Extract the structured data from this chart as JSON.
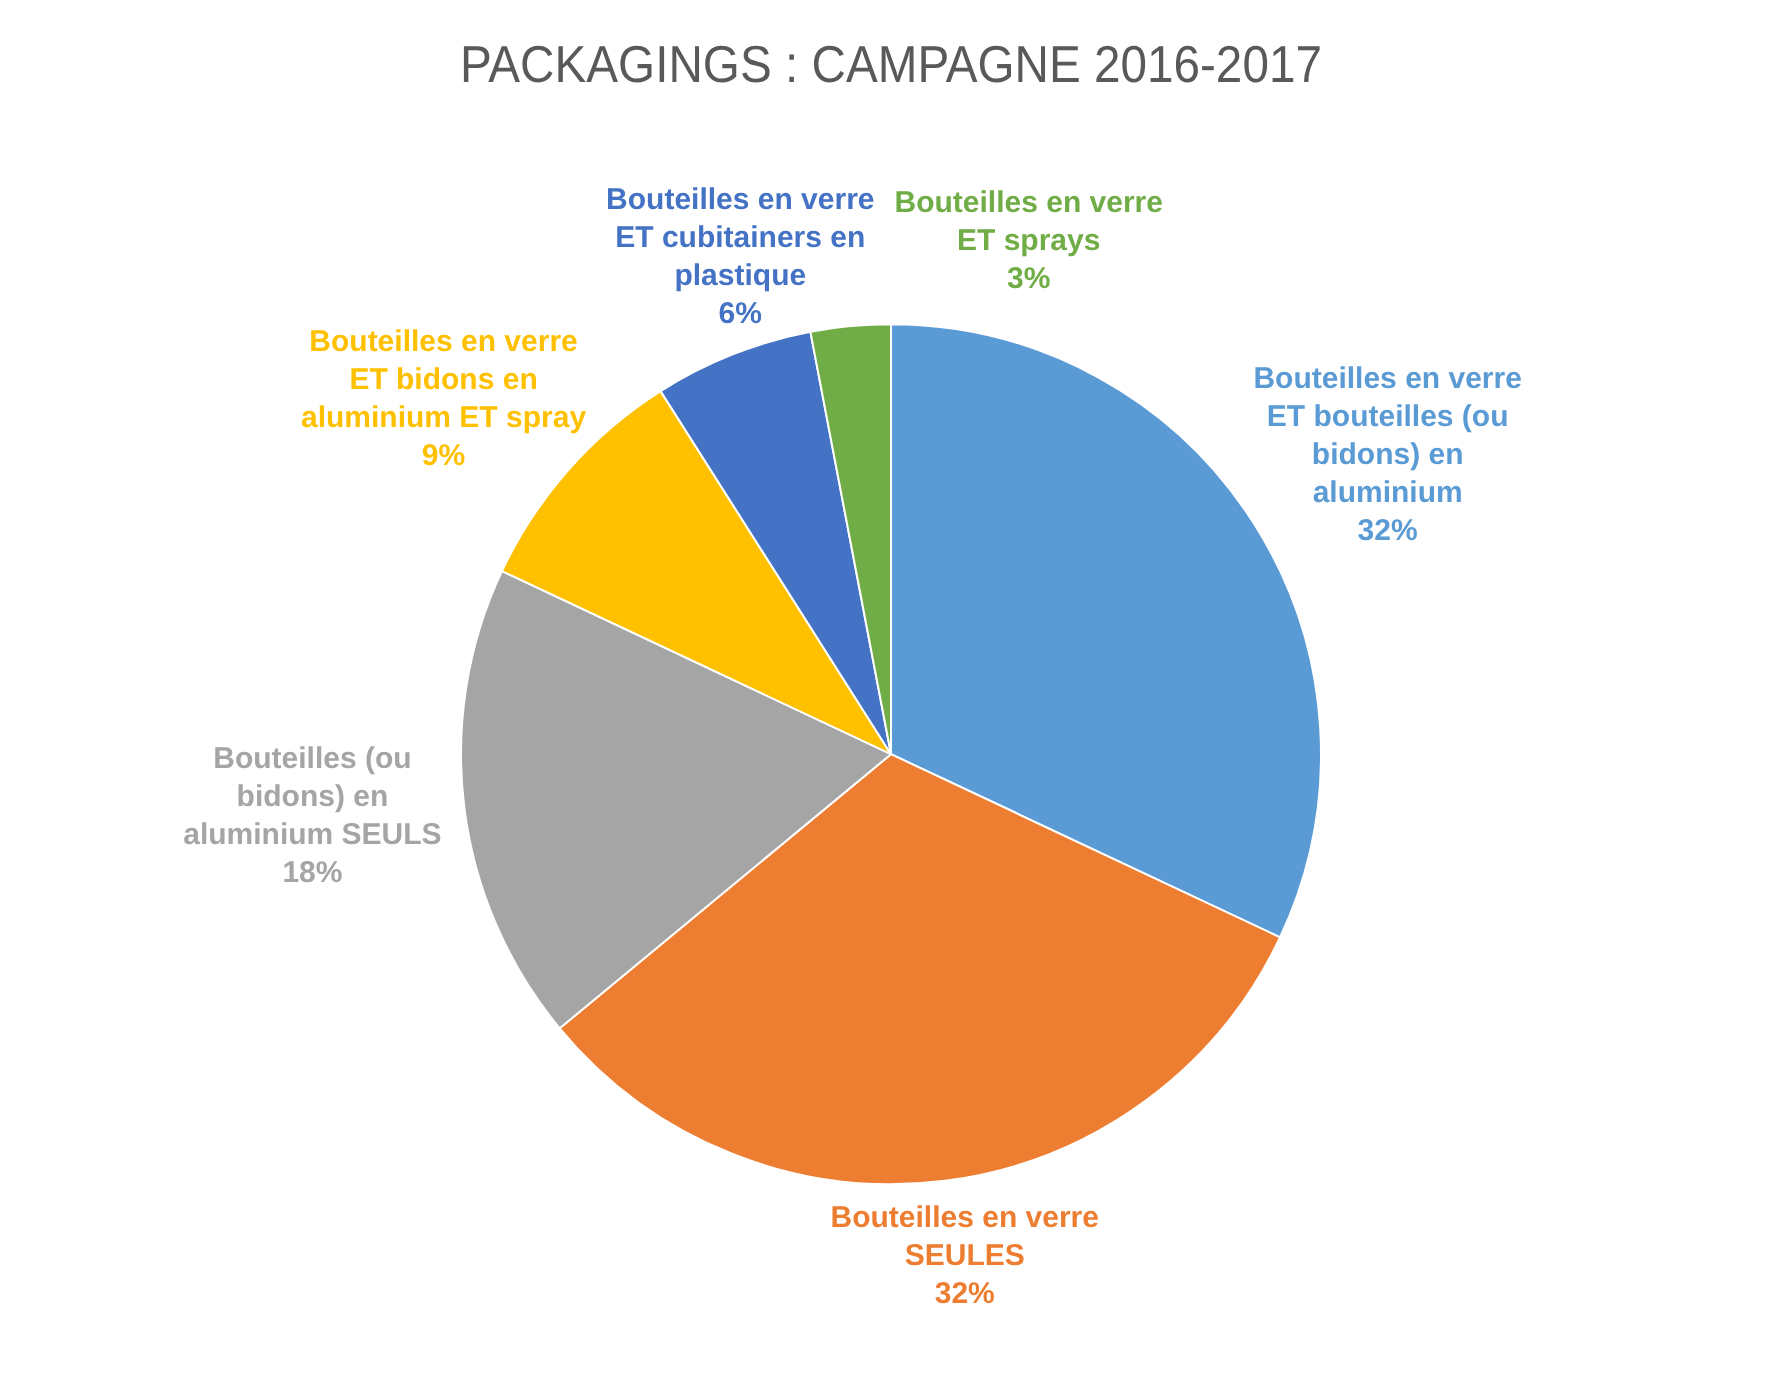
{
  "chart_data": {
    "type": "pie",
    "title": "PACKAGINGS : CAMPAGNE 2016-2017",
    "categories": [
      "Bouteilles en verre ET bouteilles (ou bidons) en aluminium",
      "Bouteilles en verre SEULES",
      "Bouteilles (ou bidons) en aluminium SEULS",
      "Bouteilles en verre ET bidons en aluminium ET spray",
      "Bouteilles en verre ET cubitainers en plastique",
      "Bouteilles en verre ET sprays"
    ],
    "values": [
      32,
      32,
      18,
      9,
      6,
      3
    ],
    "value_labels": [
      "32%",
      "32%",
      "18%",
      "9%",
      "6%",
      "3%"
    ],
    "colors": [
      "#5b9bd5",
      "#ed7d31",
      "#a5a5a5",
      "#ffc000",
      "#4472c4",
      "#70ad47"
    ],
    "legend": false
  }
}
